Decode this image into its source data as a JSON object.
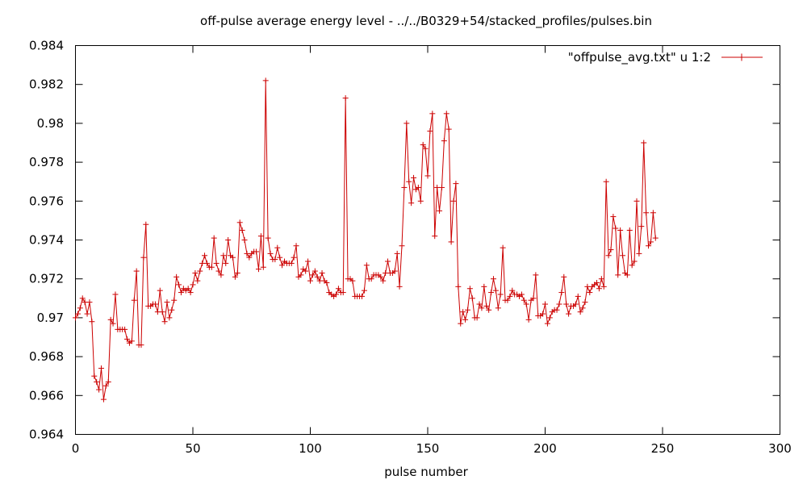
{
  "chart_data": {
    "type": "line",
    "title": "off-pulse average energy level - ../../B0329+54/stacked_profiles/pulses.bin",
    "xlabel": "pulse number",
    "ylabel": "",
    "xlim": [
      0,
      300
    ],
    "ylim": [
      0.964,
      0.984
    ],
    "x_ticks": [
      "0",
      "50",
      "100",
      "150",
      "200",
      "250",
      "300"
    ],
    "y_ticks": [
      "0.964",
      "0.966",
      "0.968",
      "0.97",
      "0.972",
      "0.974",
      "0.976",
      "0.978",
      "0.98",
      "0.982",
      "0.984"
    ],
    "grid": false,
    "legend_position": "top-right",
    "series": [
      {
        "name": "\"offpulse_avg.txt\" u 1:2",
        "color": "#cc0000",
        "marker": "plus",
        "y_start_x": 0,
        "y": [
          0.97,
          0.9702,
          0.9705,
          0.971,
          0.9708,
          0.9702,
          0.9708,
          0.9698,
          0.967,
          0.9667,
          0.9663,
          0.9674,
          0.9658,
          0.9665,
          0.9667,
          0.9699,
          0.9697,
          0.9712,
          0.9694,
          0.9694,
          0.9694,
          0.9694,
          0.9689,
          0.9687,
          0.9688,
          0.9709,
          0.9724,
          0.9686,
          0.9686,
          0.9731,
          0.9748,
          0.9706,
          0.9706,
          0.9707,
          0.9707,
          0.9703,
          0.9714,
          0.9703,
          0.9698,
          0.9708,
          0.97,
          0.9704,
          0.9709,
          0.9721,
          0.9717,
          0.9713,
          0.9715,
          0.9714,
          0.9715,
          0.9713,
          0.9717,
          0.9723,
          0.9719,
          0.9724,
          0.9728,
          0.9732,
          0.9728,
          0.9726,
          0.9726,
          0.9741,
          0.9728,
          0.9724,
          0.9722,
          0.9732,
          0.9728,
          0.974,
          0.9732,
          0.9731,
          0.9721,
          0.9723,
          0.9749,
          0.9745,
          0.974,
          0.9733,
          0.9731,
          0.9733,
          0.9734,
          0.9734,
          0.9725,
          0.9742,
          0.9726,
          0.9822,
          0.9741,
          0.9733,
          0.973,
          0.973,
          0.9736,
          0.9731,
          0.9727,
          0.9729,
          0.9728,
          0.9728,
          0.9728,
          0.9731,
          0.9737,
          0.9721,
          0.9722,
          0.9725,
          0.9724,
          0.9729,
          0.9719,
          0.9722,
          0.9724,
          0.9721,
          0.9719,
          0.9723,
          0.9719,
          0.9718,
          0.9713,
          0.9712,
          0.9711,
          0.9712,
          0.9715,
          0.9713,
          0.9713,
          0.9813,
          0.972,
          0.972,
          0.9719,
          0.9711,
          0.9711,
          0.9711,
          0.9711,
          0.9714,
          0.9727,
          0.972,
          0.972,
          0.9722,
          0.9722,
          0.9722,
          0.9721,
          0.9719,
          0.9723,
          0.9729,
          0.9723,
          0.9723,
          0.9724,
          0.9733,
          0.9716,
          0.9737,
          0.9767,
          0.98,
          0.977,
          0.9759,
          0.9772,
          0.9766,
          0.9767,
          0.976,
          0.9789,
          0.9787,
          0.9773,
          0.9796,
          0.9805,
          0.9742,
          0.9767,
          0.9755,
          0.9767,
          0.9791,
          0.9805,
          0.9797,
          0.9739,
          0.976,
          0.9769,
          0.9716,
          0.9697,
          0.9703,
          0.9699,
          0.9704,
          0.9715,
          0.971,
          0.97,
          0.97,
          0.9707,
          0.9705,
          0.9716,
          0.9706,
          0.9704,
          0.9713,
          0.972,
          0.9714,
          0.9705,
          0.9712,
          0.9736,
          0.9709,
          0.9709,
          0.9711,
          0.9714,
          0.9712,
          0.9712,
          0.9711,
          0.9712,
          0.9709,
          0.9707,
          0.9699,
          0.9709,
          0.971,
          0.9722,
          0.9701,
          0.9701,
          0.9702,
          0.9707,
          0.9697,
          0.97,
          0.9703,
          0.9704,
          0.9704,
          0.9707,
          0.9713,
          0.9721,
          0.9707,
          0.9702,
          0.9706,
          0.9706,
          0.9707,
          0.9711,
          0.9703,
          0.9705,
          0.9708,
          0.9716,
          0.9713,
          0.9716,
          0.9717,
          0.9718,
          0.9715,
          0.972,
          0.9716,
          0.977,
          0.9732,
          0.9735,
          0.9752,
          0.9746,
          0.9722,
          0.9745,
          0.9732,
          0.9723,
          0.9722,
          0.9745,
          0.9727,
          0.9729,
          0.976,
          0.9733,
          0.9747,
          0.979,
          0.9754,
          0.9737,
          0.9739,
          0.9754,
          0.9741
        ]
      }
    ]
  }
}
